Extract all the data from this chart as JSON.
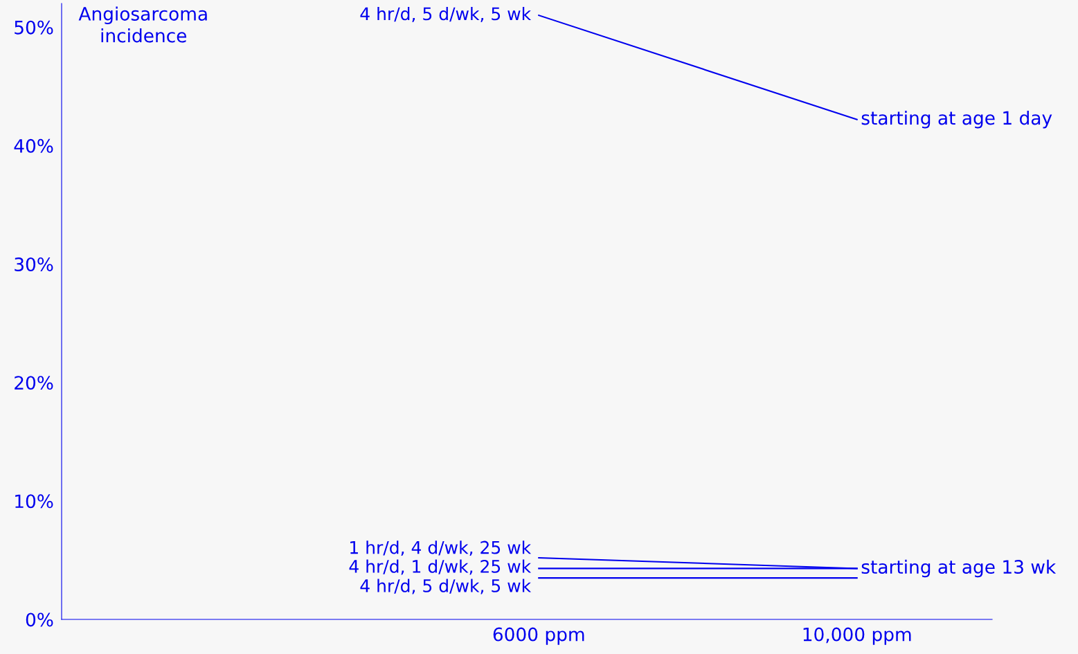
{
  "chart_data": {
    "type": "line",
    "ylabel": "Angiosarcoma\nincidence",
    "xlim": [
      0,
      11700
    ],
    "ylim": [
      0,
      52
    ],
    "xticks": [
      {
        "value": 6000,
        "label": "6000 ppm"
      },
      {
        "value": 10000,
        "label": "10,000 ppm"
      }
    ],
    "yticks": [
      {
        "value": 0,
        "label": "0%"
      },
      {
        "value": 10,
        "label": "10%"
      },
      {
        "value": 20,
        "label": "20%"
      },
      {
        "value": 30,
        "label": "30%"
      },
      {
        "value": 40,
        "label": "40%"
      },
      {
        "value": 50,
        "label": "50%"
      }
    ],
    "x": [
      6000,
      10000
    ],
    "series": [
      {
        "name": "4 hr/d, 5 d/wk, 5 wk",
        "color": "#0000ee",
        "values": [
          51,
          42.2
        ]
      },
      {
        "name": "1 hr/d, 4 d/wk, 25 wk",
        "color": "#0000ee",
        "values": [
          5.2,
          4.3
        ]
      },
      {
        "name": "4 hr/d, 1 d/wk, 25 wk",
        "color": "#0000ee",
        "values": [
          4.3,
          4.3
        ]
      },
      {
        "name": "4 hr/d, 5 d/wk, 5 wk",
        "color": "#0000ee",
        "values": [
          3.5,
          3.5
        ]
      }
    ],
    "annotations": [
      {
        "text": "starting at age 1 day",
        "x": 10000,
        "y": 42.2
      },
      {
        "text": "starting at age 13 wk",
        "x": 10000,
        "y": 4.3
      }
    ],
    "grid": false,
    "marker": "none",
    "line_style": "solid"
  }
}
